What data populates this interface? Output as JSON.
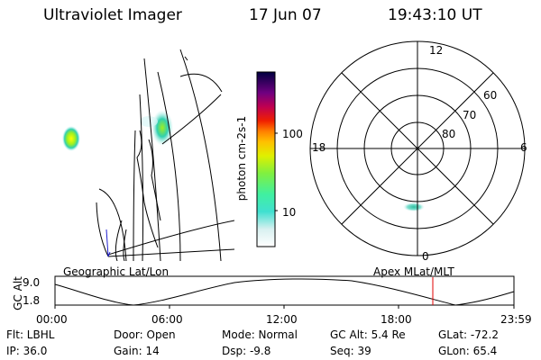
{
  "header": {
    "instrument": "Ultraviolet Imager",
    "date": "17 Jun 07",
    "time": "19:43:10 UT"
  },
  "geo_panel": {
    "label": "Geographic Lat/Lon"
  },
  "colorbar": {
    "unit_label": "photon cm-2s-1",
    "ticks": [
      "100",
      "10"
    ]
  },
  "polar_plot": {
    "label": "Apex MLat/MLT",
    "mlt_labels": {
      "top": "12",
      "left": "18",
      "right": "6",
      "bottom": "0"
    },
    "mlat_labels": [
      "60",
      "70",
      "80"
    ]
  },
  "altitude_strip": {
    "axis_label": "GC Alt",
    "y_ticks": [
      "9.0",
      "1.8"
    ],
    "x_ticks": [
      "00:00",
      "06:00",
      "12:00",
      "18:00",
      "23:59"
    ],
    "marker_color": "#e00000"
  },
  "footer": {
    "flt": "Flt: LBHL",
    "ip": "IP: 36.0",
    "door": "Door: Open",
    "gain": "Gain: 14",
    "mode": "Mode: Normal",
    "dsp": "Dsp:   -9.8",
    "gc_alt": "GC Alt: 5.4 Re",
    "seq": "Seq: 39",
    "glat": "GLat: -72.2",
    "glon": "GLon:  65.4"
  }
}
